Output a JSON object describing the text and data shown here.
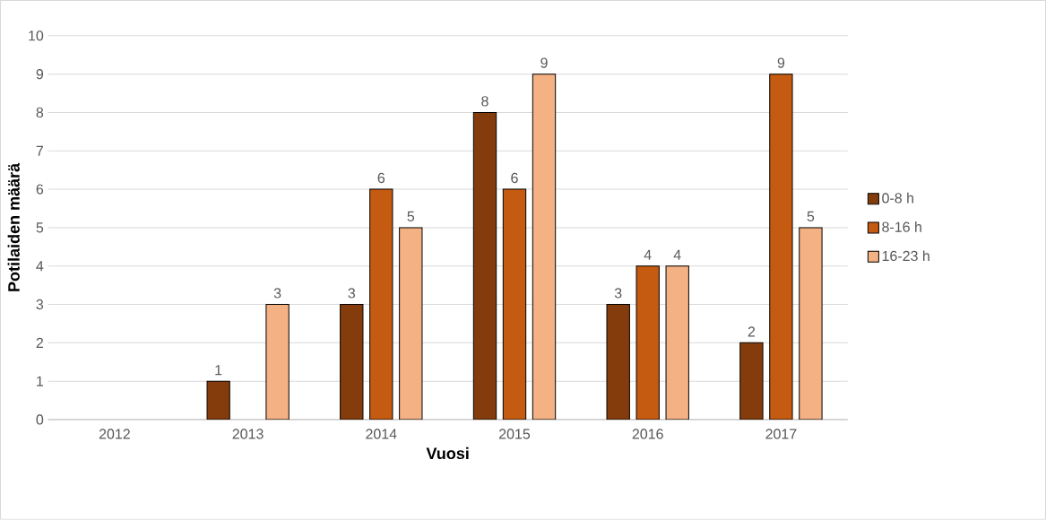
{
  "chart_data": {
    "type": "bar",
    "xlabel": "Vuosi",
    "ylabel": "Potilaiden määrä",
    "categories": [
      "2012",
      "2013",
      "2014",
      "2015",
      "2016",
      "2017"
    ],
    "series": [
      {
        "name": "0-8 h",
        "color": "#843c0c",
        "values": [
          null,
          1,
          3,
          8,
          3,
          2
        ]
      },
      {
        "name": "8-16 h",
        "color": "#c55a11",
        "values": [
          null,
          null,
          6,
          6,
          4,
          9
        ]
      },
      {
        "name": "16-23 h",
        "color": "#f4b183",
        "values": [
          null,
          3,
          5,
          9,
          4,
          5
        ]
      }
    ],
    "ylim": [
      0,
      10
    ],
    "yticks": [
      0,
      1,
      2,
      3,
      4,
      5,
      6,
      7,
      8,
      9,
      10
    ],
    "grid": "y",
    "legend": "right",
    "data_labels": true
  }
}
